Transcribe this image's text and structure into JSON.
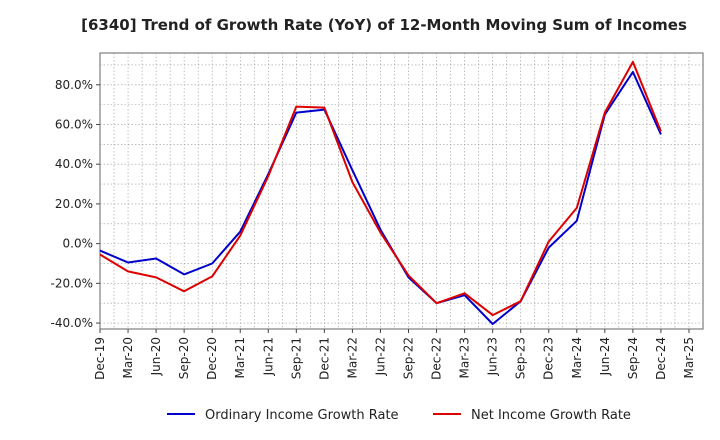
{
  "chart_data": {
    "type": "line",
    "title": "[6340]  Trend of Growth Rate (YoY) of 12-Month Moving Sum of Incomes",
    "xlabel": "",
    "ylabel": "",
    "x_tick_labels": [
      "Dec-19",
      "Mar-20",
      "Jun-20",
      "Sep-20",
      "Dec-20",
      "Mar-21",
      "Jun-21",
      "Sep-21",
      "Dec-21",
      "Mar-22",
      "Jun-22",
      "Sep-22",
      "Dec-22",
      "Mar-23",
      "Jun-23",
      "Sep-23",
      "Dec-23",
      "Mar-24",
      "Jun-24",
      "Sep-24",
      "Dec-24",
      "Mar-25"
    ],
    "categories": [
      "Dec-19",
      "Mar-20",
      "Jun-20",
      "Sep-20",
      "Dec-20",
      "Mar-21",
      "Jun-21",
      "Sep-21",
      "Dec-21",
      "Mar-22",
      "Jun-22",
      "Sep-22",
      "Dec-22",
      "Mar-23",
      "Jun-23",
      "Sep-23",
      "Dec-23",
      "Mar-24",
      "Jun-24",
      "Sep-24",
      "Dec-24"
    ],
    "y_ticks": [
      -40,
      -20,
      0,
      20,
      40,
      60,
      80
    ],
    "y_tick_labels": [
      "-40.0%",
      "-20.0%",
      "0.0%",
      "20.0%",
      "40.0%",
      "60.0%",
      "80.0%"
    ],
    "ylim": [
      -43,
      96
    ],
    "grid": true,
    "legend_position": "bottom",
    "series": [
      {
        "name": "Ordinary Income Growth Rate",
        "color": "#0000cc",
        "values": [
          -3.5,
          -9.5,
          -7.5,
          -15.5,
          -10,
          6,
          35,
          66,
          67.5,
          37,
          7,
          -17,
          -30,
          -26,
          -40.5,
          -29,
          -2,
          11.5,
          65,
          86.5,
          55
        ]
      },
      {
        "name": "Net Income Growth Rate",
        "color": "#dd0000",
        "values": [
          -5.5,
          -14,
          -17,
          -24,
          -16.5,
          4,
          34,
          69,
          68.5,
          31,
          5.5,
          -16,
          -30,
          -25,
          -36,
          -29,
          1,
          18,
          66,
          91.5,
          56.5
        ]
      }
    ]
  }
}
